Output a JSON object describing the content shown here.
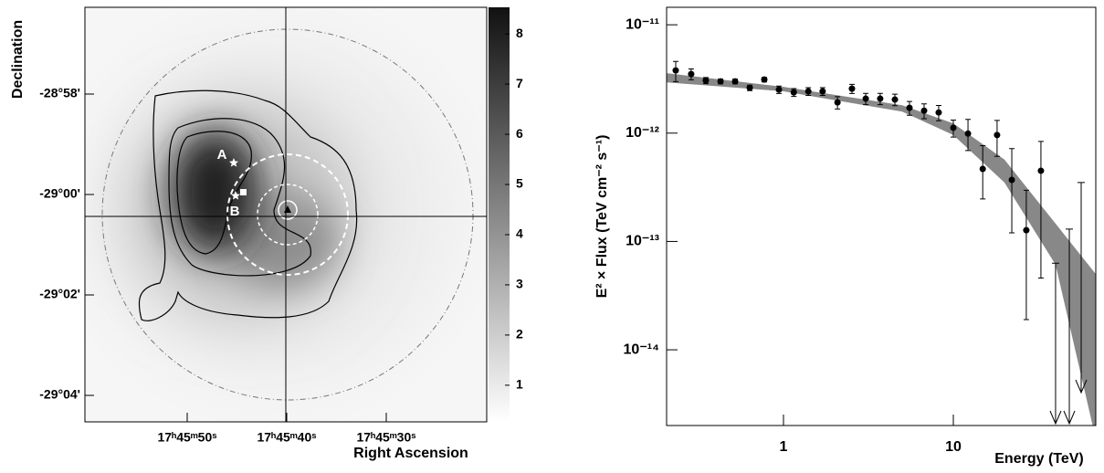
{
  "chart_data": [
    {
      "type": "skymap",
      "xlabel": "Right Ascension",
      "ylabel": "Declination",
      "xtick_labels": [
        "17ʰ45ᵐ50ˢ",
        "17ʰ45ᵐ40ˢ",
        "17ʰ45ᵐ30ˢ"
      ],
      "ytick_labels": [
        "-28°58'",
        "-29°00'",
        "-29°02'",
        "-29°04'"
      ],
      "annotations": [
        "A",
        "B"
      ],
      "colorbar": {
        "lim": [
          0.27,
          8.53
        ],
        "ticks": [
          1,
          2,
          3,
          4,
          5,
          6,
          7,
          8
        ]
      }
    },
    {
      "type": "scatter",
      "xlabel": "Energy (TeV)",
      "ylabel": "E² × Flux (TeV cm⁻² s⁻¹)",
      "xscale": "log",
      "yscale": "log",
      "xlim": [
        0.205,
        69
      ],
      "ylim": [
        2e-15,
        1.45e-11
      ],
      "xticks": [
        1,
        10
      ],
      "yticks": [
        {
          "value": 1e-11,
          "label": "10⁻¹¹"
        },
        {
          "value": 1e-12,
          "label": "10⁻¹²"
        },
        {
          "value": 1e-13,
          "label": "10⁻¹³"
        },
        {
          "value": 1e-14,
          "label": "10⁻¹⁴"
        }
      ],
      "color": "#000000",
      "x": [
        0.232,
        0.286,
        0.349,
        0.426,
        0.519,
        0.633,
        0.771,
        0.94,
        1.15,
        1.4,
        1.7,
        2.08,
        2.53,
        3.05,
        3.71,
        4.53,
        5.52,
        6.73,
        8.2,
        10,
        12.2,
        14.9,
        18.1,
        22.1,
        26.9,
        32.8
      ],
      "values": [
        3.79e-12,
        3.51e-12,
        3.06e-12,
        3e-12,
        3e-12,
        2.62e-12,
        3.12e-12,
        2.52e-12,
        2.38e-12,
        2.43e-12,
        2.43e-12,
        1.92e-12,
        2.57e-12,
        2.08e-12,
        2.08e-12,
        2.04e-12,
        1.71e-12,
        1.61e-12,
        1.55e-12,
        1.12e-12,
        9.9e-13,
        4.67e-13,
        9.6e-13,
        3.7e-13,
        1.27e-13,
        4.49e-13
      ],
      "err_low": [
        8e-13,
        4e-13,
        2e-13,
        1.5e-13,
        1.5e-13,
        1.5e-13,
        1.5e-13,
        2e-13,
        2e-13,
        2e-13,
        2e-13,
        2.5e-13,
        2.5e-13,
        2.5e-13,
        2.5e-13,
        2.5e-13,
        2.5e-13,
        2.5e-13,
        2.5e-13,
        2e-13,
        3e-13,
        2.2e-13,
        3.5e-13,
        2.5e-13,
        1.08e-13,
        4.03e-13
      ],
      "err_high": [
        8e-13,
        4e-13,
        2e-13,
        1.5e-13,
        1.5e-13,
        1.5e-13,
        1.5e-13,
        2e-13,
        2e-13,
        2e-13,
        2e-13,
        2.5e-13,
        2.5e-13,
        2.5e-13,
        2.5e-13,
        2.5e-13,
        2.5e-13,
        2.5e-13,
        2.5e-13,
        2e-13,
        3.5e-13,
        3e-13,
        3.5e-13,
        3.5e-13,
        1.7e-13,
        3.9e-13
      ],
      "upper_limits": {
        "x": [
          40,
          48.2,
          56.6
        ],
        "values": [
          6.3e-14,
          1.3e-13,
          3.5e-13
        ]
      },
      "band": {
        "color": "#888888",
        "x": [
          0.205,
          1,
          5,
          10,
          20,
          40,
          69
        ],
        "high": [
          3.58e-12,
          2.67e-12,
          1.81e-12,
          1.23e-12,
          5.7e-13,
          1.46e-13,
          5e-14
        ],
        "low": [
          2.94e-12,
          2.43e-12,
          1.58e-12,
          9.6e-13,
          3.5e-13,
          6.1e-14,
          1.5e-15
        ]
      }
    }
  ]
}
